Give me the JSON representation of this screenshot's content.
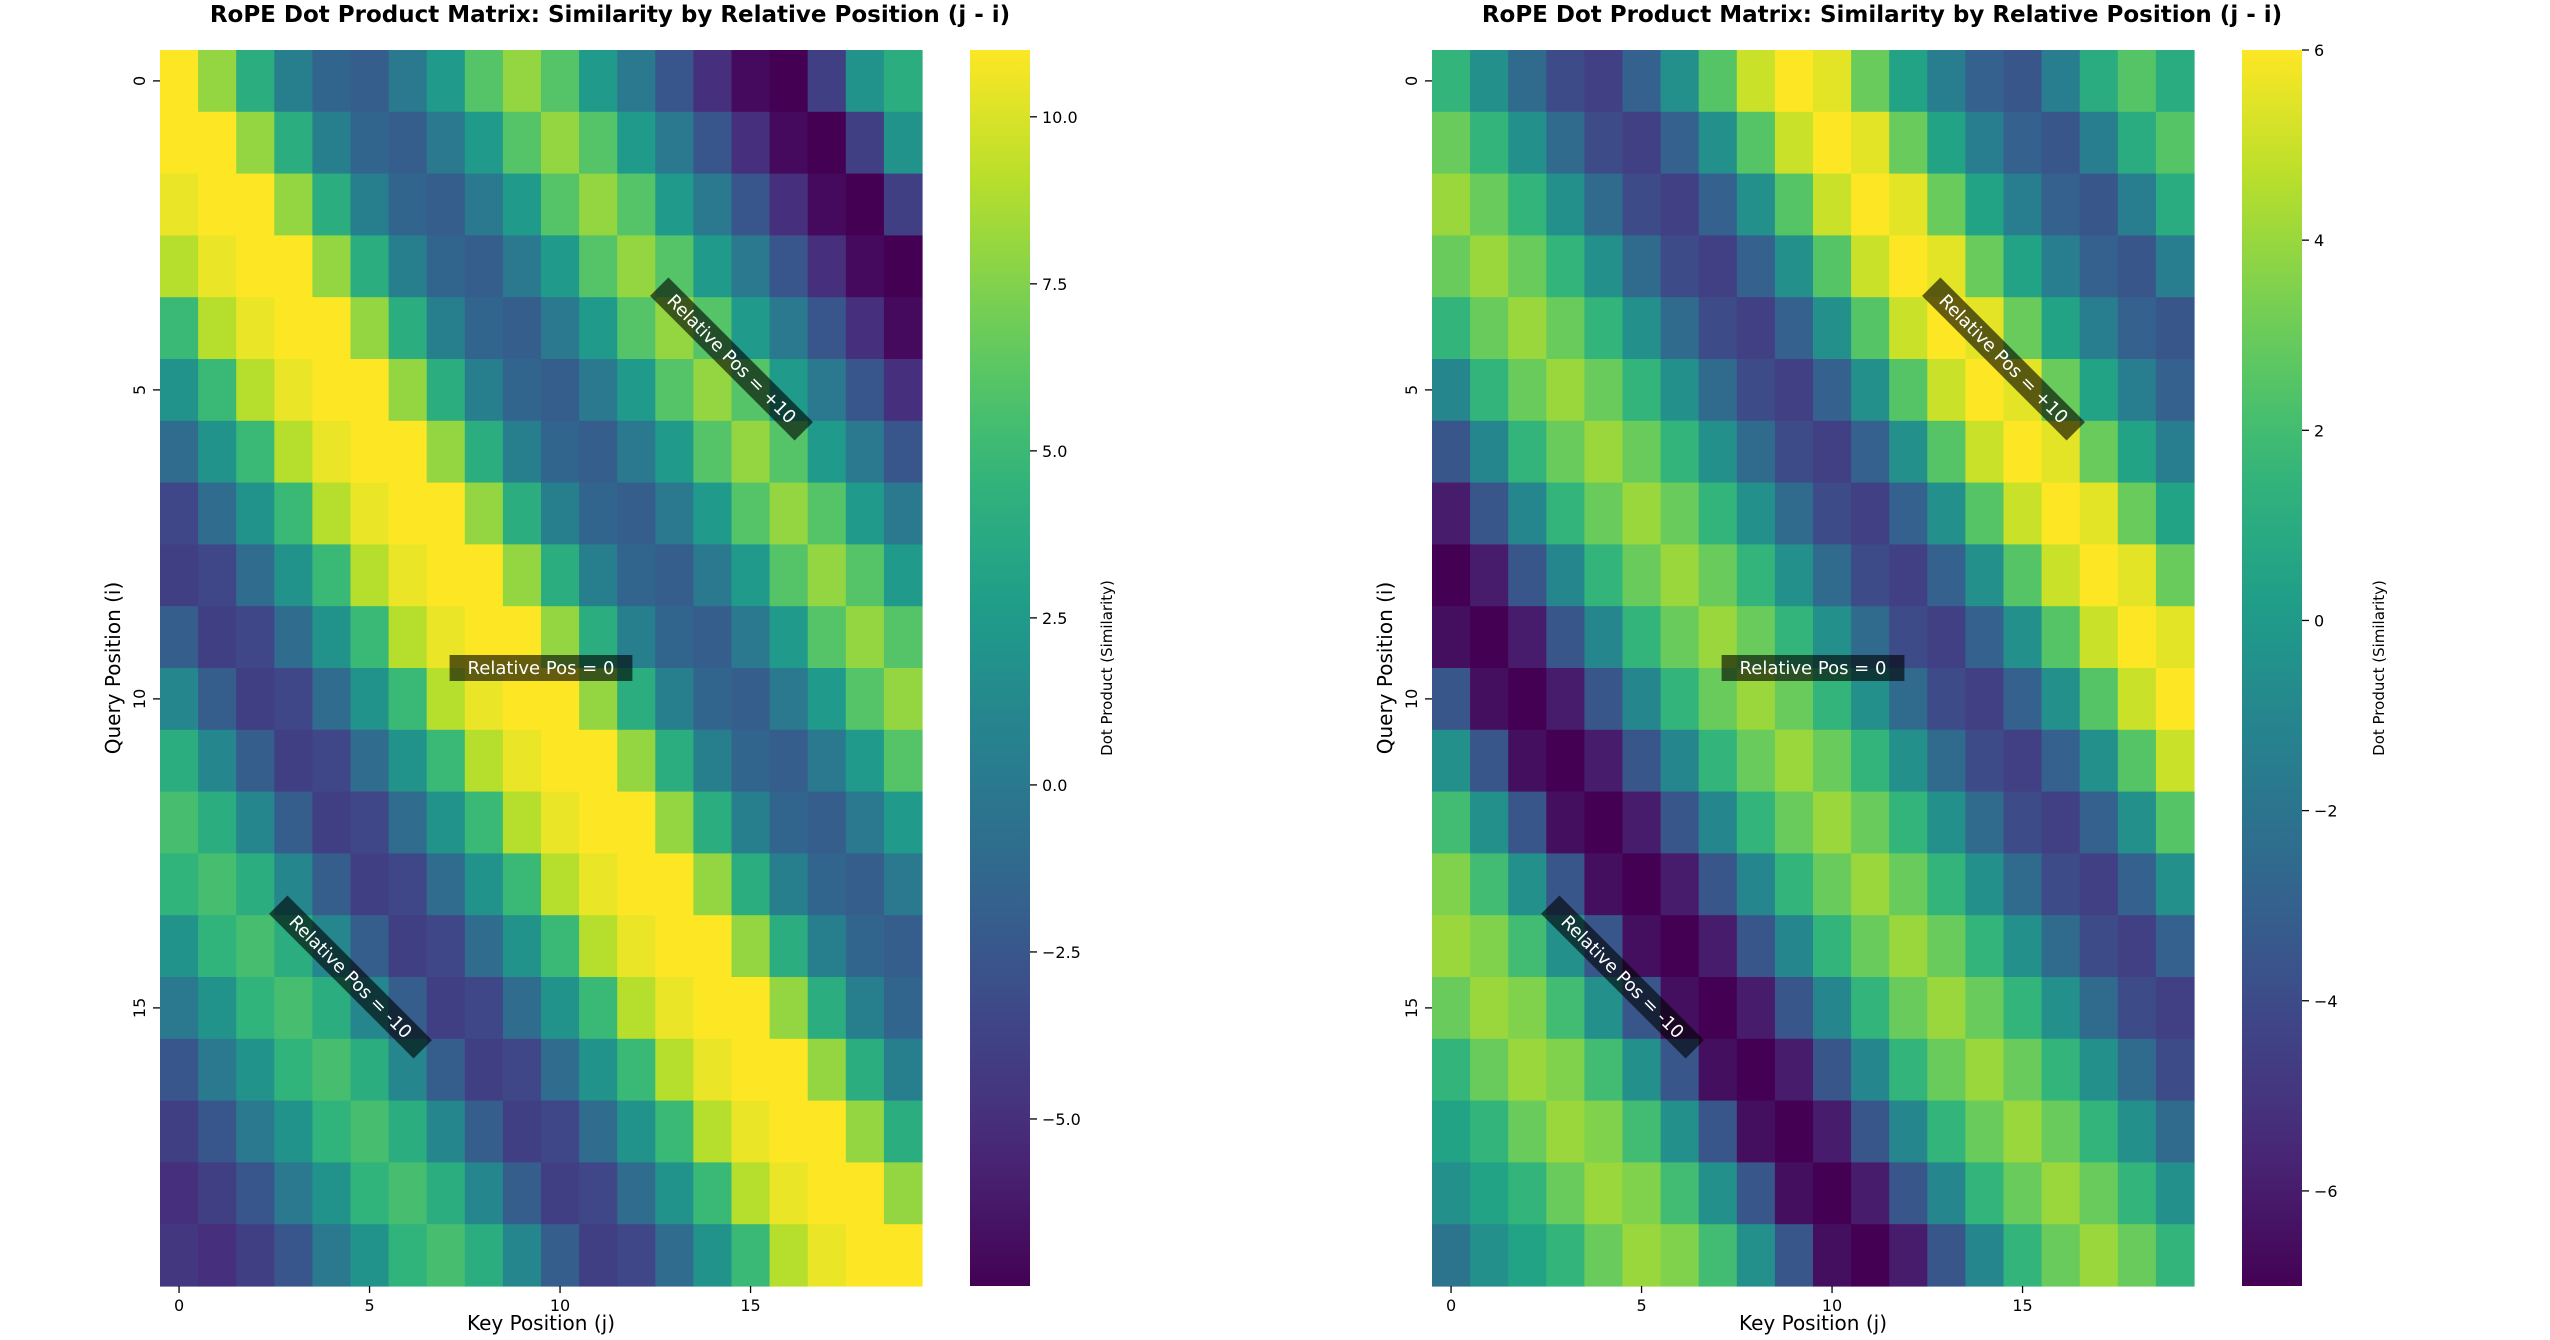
{
  "chart_data": [
    {
      "type": "heatmap",
      "title": "RoPE Dot Product Matrix: Similarity by Relative Position (j - i)",
      "xlabel": "Key Position (j)",
      "ylabel": "Query Position (i)",
      "colorbar_label": "Dot Product (Similarity)",
      "colormap": "viridis",
      "rows": 20,
      "cols": 20,
      "x_ticks": [
        0,
        5,
        10,
        15
      ],
      "y_ticks": [
        0,
        5,
        10,
        15
      ],
      "colorbar_range": [
        -7.5,
        11.0
      ],
      "colorbar_ticks": [
        -5.0,
        -2.5,
        0.0,
        2.5,
        5.0,
        7.5,
        10.0
      ],
      "colorbar_tick_labels": [
        "−5.0",
        "−2.5",
        "0.0",
        "2.5",
        "5.0",
        "7.5",
        "10.0"
      ],
      "annotations": [
        {
          "text": "Relative Pos = 0",
          "offset": 0,
          "row": 9.5,
          "col": 9.5,
          "rotation": 0
        },
        {
          "text": "Relative Pos = +10",
          "offset": 10,
          "row": 4.5,
          "col": 14.5,
          "rotation": 45
        },
        {
          "text": "Relative Pos = -10",
          "offset": -10,
          "row": 14.5,
          "col": 4.5,
          "rotation": 45
        }
      ],
      "similarity_by_offset": [
        {
          "offset": -19,
          "value": -4.5
        },
        {
          "offset": -18,
          "value": -5.0
        },
        {
          "offset": -17,
          "value": -4.0
        },
        {
          "offset": -16,
          "value": -2.5
        },
        {
          "offset": -15,
          "value": 0.0
        },
        {
          "offset": -14,
          "value": 2.0
        },
        {
          "offset": -13,
          "value": 4.5
        },
        {
          "offset": -12,
          "value": 5.5
        },
        {
          "offset": -11,
          "value": 4.0
        },
        {
          "offset": -10,
          "value": 1.0
        },
        {
          "offset": -9,
          "value": -2.0
        },
        {
          "offset": -8,
          "value": -4.0
        },
        {
          "offset": -7,
          "value": -3.5
        },
        {
          "offset": -6,
          "value": -1.0
        },
        {
          "offset": -5,
          "value": 2.0
        },
        {
          "offset": -4,
          "value": 5.0
        },
        {
          "offset": -3,
          "value": 9.0
        },
        {
          "offset": -2,
          "value": 10.5
        },
        {
          "offset": -1,
          "value": 11.0
        },
        {
          "offset": 0,
          "value": 11.0
        },
        {
          "offset": 1,
          "value": 8.0
        },
        {
          "offset": 2,
          "value": 4.0
        },
        {
          "offset": 3,
          "value": 0.5
        },
        {
          "offset": 4,
          "value": -1.5
        },
        {
          "offset": 5,
          "value": -2.0
        },
        {
          "offset": 6,
          "value": 0.0
        },
        {
          "offset": 7,
          "value": 2.5
        },
        {
          "offset": 8,
          "value": 6.0
        },
        {
          "offset": 9,
          "value": 8.0
        },
        {
          "offset": 10,
          "value": 6.0
        },
        {
          "offset": 11,
          "value": 2.5
        },
        {
          "offset": 12,
          "value": 0.0
        },
        {
          "offset": 13,
          "value": -2.5
        },
        {
          "offset": 14,
          "value": -5.0
        },
        {
          "offset": 15,
          "value": -7.0
        },
        {
          "offset": 16,
          "value": -7.5
        },
        {
          "offset": 17,
          "value": -4.0
        },
        {
          "offset": 18,
          "value": 2.0
        },
        {
          "offset": 19,
          "value": 4.0
        }
      ]
    },
    {
      "type": "heatmap",
      "title": "RoPE Dot Product Matrix: Similarity by Relative Position (j - i)",
      "xlabel": "Key Position (j)",
      "ylabel": "Query Position (i)",
      "colorbar_label": "Dot Product (Similarity)",
      "colormap": "viridis",
      "rows": 20,
      "cols": 20,
      "x_ticks": [
        0,
        5,
        10,
        15
      ],
      "y_ticks": [
        0,
        5,
        10,
        15
      ],
      "colorbar_range": [
        -7.0,
        6.0
      ],
      "colorbar_ticks": [
        -6,
        -4,
        -2,
        0,
        2,
        4,
        6
      ],
      "colorbar_tick_labels": [
        "−6",
        "−4",
        "−2",
        "0",
        "2",
        "4",
        "6"
      ],
      "annotations": [
        {
          "text": "Relative Pos = 0",
          "offset": 0,
          "row": 9.5,
          "col": 9.5,
          "rotation": 0
        },
        {
          "text": "Relative Pos = +10",
          "offset": 10,
          "row": 4.5,
          "col": 14.5,
          "rotation": 45
        },
        {
          "text": "Relative Pos = -10",
          "offset": -10,
          "row": 14.5,
          "col": 4.5,
          "rotation": 45
        }
      ],
      "similarity_by_offset": [
        {
          "offset": -19,
          "value": -2.0
        },
        {
          "offset": -18,
          "value": -0.5
        },
        {
          "offset": -17,
          "value": 0.5
        },
        {
          "offset": -16,
          "value": 1.5
        },
        {
          "offset": -15,
          "value": 3.0
        },
        {
          "offset": -14,
          "value": 4.0
        },
        {
          "offset": -13,
          "value": 3.5
        },
        {
          "offset": -12,
          "value": 2.0
        },
        {
          "offset": -11,
          "value": -0.5
        },
        {
          "offset": -10,
          "value": -3.5
        },
        {
          "offset": -9,
          "value": -6.5
        },
        {
          "offset": -8,
          "value": -7.0
        },
        {
          "offset": -7,
          "value": -6.0
        },
        {
          "offset": -6,
          "value": -3.5
        },
        {
          "offset": -5,
          "value": -1.0
        },
        {
          "offset": -4,
          "value": 1.5
        },
        {
          "offset": -3,
          "value": 3.0
        },
        {
          "offset": -2,
          "value": 4.0
        },
        {
          "offset": -1,
          "value": 3.0
        },
        {
          "offset": 0,
          "value": 1.5
        },
        {
          "offset": 1,
          "value": -0.5
        },
        {
          "offset": 2,
          "value": -2.5
        },
        {
          "offset": 3,
          "value": -4.0
        },
        {
          "offset": 4,
          "value": -4.5
        },
        {
          "offset": 5,
          "value": -3.0
        },
        {
          "offset": 6,
          "value": -0.5
        },
        {
          "offset": 7,
          "value": 2.5
        },
        {
          "offset": 8,
          "value": 5.0
        },
        {
          "offset": 9,
          "value": 6.0
        },
        {
          "offset": 10,
          "value": 5.5
        },
        {
          "offset": 11,
          "value": 3.0
        },
        {
          "offset": 12,
          "value": 0.5
        },
        {
          "offset": 13,
          "value": -1.5
        },
        {
          "offset": 14,
          "value": -3.0
        },
        {
          "offset": 15,
          "value": -3.5
        },
        {
          "offset": 16,
          "value": -1.5
        },
        {
          "offset": 17,
          "value": 1.0
        },
        {
          "offset": 18,
          "value": 2.5
        },
        {
          "offset": 19,
          "value": 1.0
        }
      ]
    }
  ]
}
